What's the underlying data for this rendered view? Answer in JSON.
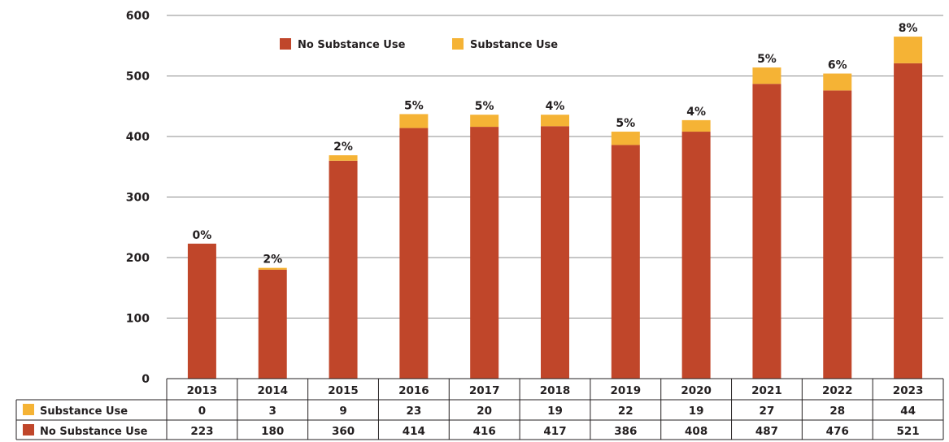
{
  "chart_data": {
    "type": "bar",
    "stacked": true,
    "categories": [
      "2013",
      "2014",
      "2015",
      "2016",
      "2017",
      "2018",
      "2019",
      "2020",
      "2021",
      "2022",
      "2023"
    ],
    "series": [
      {
        "name": "No Substance Use",
        "values": [
          223,
          180,
          360,
          414,
          416,
          417,
          386,
          408,
          487,
          476,
          521
        ]
      },
      {
        "name": "Substance Use",
        "values": [
          0,
          3,
          9,
          23,
          20,
          19,
          22,
          19,
          27,
          28,
          44
        ]
      }
    ],
    "percent_labels": [
      "0%",
      "2%",
      "2%",
      "5%",
      "5%",
      "4%",
      "5%",
      "4%",
      "5%",
      "6%",
      "8%"
    ],
    "ylim": [
      0,
      600
    ],
    "yticks": [
      0,
      100,
      200,
      300,
      400,
      500,
      600
    ],
    "grid": true,
    "legend": {
      "position": "top",
      "items": [
        "No Substance Use",
        "Substance Use"
      ]
    },
    "data_table": {
      "rows": [
        {
          "label": "Substance Use",
          "series": "Substance Use"
        },
        {
          "label": "No Substance Use",
          "series": "No Substance Use"
        }
      ]
    }
  },
  "colors": {
    "no_substance_use": "#c0462a",
    "substance_use": "#f5b335",
    "grid": "#8c8c8c",
    "table_border": "#231f20"
  }
}
